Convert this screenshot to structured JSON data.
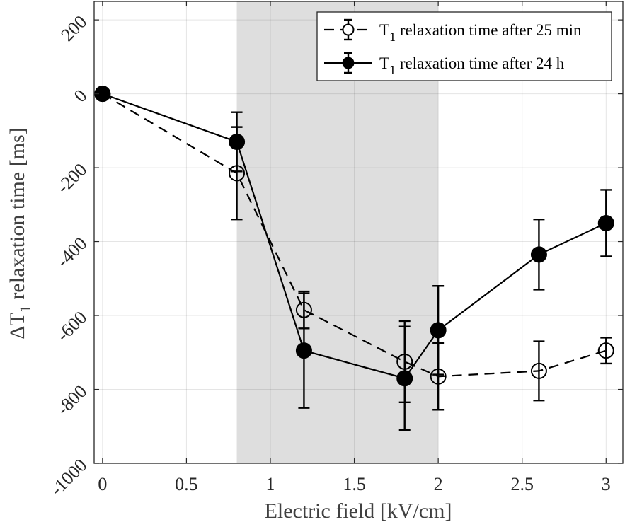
{
  "chart_data": {
    "type": "line",
    "xlabel": "Electric field [kV/cm]",
    "ylabel": "ΔT",
    "ylabel_subscript": "1",
    "ylabel_rest": " relaxation time [ms]",
    "xlim": [
      -0.05,
      3.1
    ],
    "ylim": [
      -1000,
      250
    ],
    "xticks": [
      0,
      0.5,
      1,
      1.5,
      2,
      2.5,
      3
    ],
    "xtick_labels": [
      "0",
      "0.5",
      "1",
      "1.5",
      "2",
      "2.5",
      "3"
    ],
    "yticks": [
      200,
      0,
      -200,
      -400,
      -600,
      -800,
      -1000
    ],
    "ytick_labels": [
      "200",
      "0",
      "-200",
      "-400",
      "-600",
      "-800",
      "-1000"
    ],
    "shaded_region": [
      0.8,
      2.0
    ],
    "grid": true,
    "legend_position": "top-right",
    "series": [
      {
        "name": "T1 relaxation time after 25 min",
        "legend_main": "T",
        "legend_sub": "1",
        "legend_rest": " relaxation time after 25 min",
        "marker": "open-circle",
        "line": "dashed",
        "x": [
          0,
          0.8,
          1.2,
          1.8,
          2.0,
          2.6,
          3.0
        ],
        "y": [
          0,
          -215,
          -585,
          -725,
          -765,
          -750,
          -695
        ],
        "err": [
          0,
          125,
          50,
          110,
          90,
          80,
          35
        ]
      },
      {
        "name": "T1 relaxation time after 24 h",
        "legend_main": "T",
        "legend_sub": "1",
        "legend_rest": " relaxation time after 24 h",
        "marker": "filled-circle",
        "line": "solid",
        "x": [
          0,
          0.8,
          1.2,
          1.8,
          2.0,
          2.6,
          3.0
        ],
        "y": [
          0,
          -130,
          -695,
          -770,
          -640,
          -435,
          -350
        ],
        "err": [
          0,
          80,
          155,
          140,
          120,
          95,
          90
        ]
      }
    ]
  }
}
